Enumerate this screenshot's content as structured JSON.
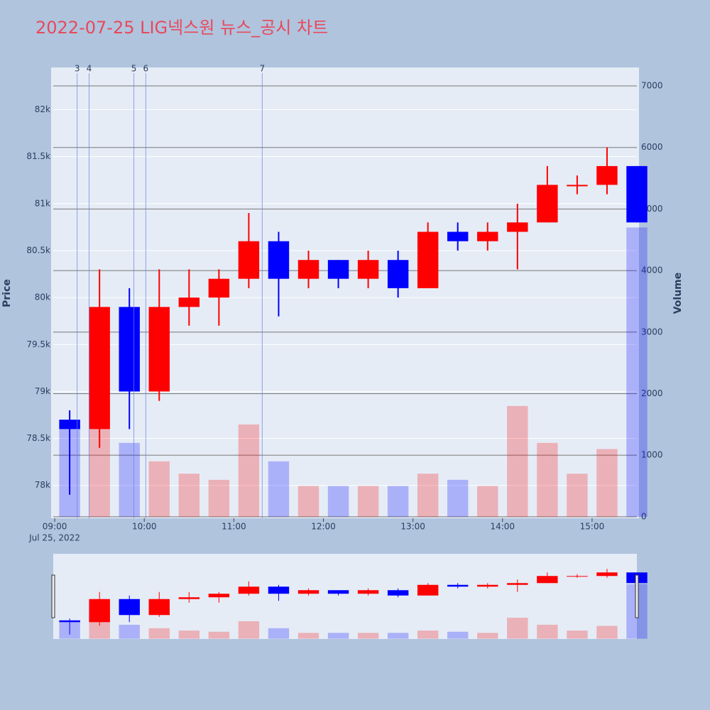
{
  "chart_data": {
    "type": "candlestick",
    "title": "2022-07-25 LIG넥스원 뉴스_공시 차트",
    "y_label": "Price",
    "y2_label": "Volume",
    "x_date_label": "Jul 25, 2022",
    "x": [
      "2022-07-25 09:00",
      "2022-07-25 09:20",
      "2022-07-25 09:40",
      "2022-07-25 10:00",
      "2022-07-25 10:20",
      "2022-07-25 10:40",
      "2022-07-25 11:00",
      "2022-07-25 11:20",
      "2022-07-25 11:40",
      "2022-07-25 12:00",
      "2022-07-25 12:20",
      "2022-07-25 12:40",
      "2022-07-25 13:00",
      "2022-07-25 13:20",
      "2022-07-25 13:40",
      "2022-07-25 14:00",
      "2022-07-25 14:20",
      "2022-07-25 14:40",
      "2022-07-25 15:00",
      "2022-07-25 15:20"
    ],
    "open": [
      78700,
      78600,
      79900,
      79000,
      79900,
      80000,
      80200,
      80600,
      80200,
      80400,
      80200,
      80400,
      80100,
      80700,
      80600,
      80700,
      80800,
      81200,
      81200,
      81400
    ],
    "high": [
      78800,
      80300,
      80100,
      80300,
      80300,
      80300,
      80900,
      80700,
      80500,
      80400,
      80500,
      80500,
      80800,
      80800,
      80800,
      81000,
      81400,
      81300,
      81600,
      81400
    ],
    "low": [
      77900,
      78400,
      78600,
      78900,
      79700,
      79700,
      80100,
      79800,
      80100,
      80100,
      80100,
      80000,
      80100,
      80500,
      80500,
      80300,
      80800,
      81100,
      81100,
      80800
    ],
    "close": [
      78600,
      79900,
      79000,
      79900,
      80000,
      80200,
      80600,
      80200,
      80400,
      80200,
      80400,
      80100,
      80700,
      80600,
      80700,
      80800,
      81200,
      81200,
      81400,
      80800
    ],
    "volume": [
      1500,
      2800,
      1200,
      900,
      700,
      600,
      1500,
      900,
      500,
      500,
      500,
      500,
      700,
      600,
      500,
      1800,
      1200,
      700,
      1100,
      4700
    ],
    "up_color": "#ff0000",
    "down_color": "#0000ff",
    "xlim": [
      "2022-07-25 08:59",
      "2022-07-25 15:30"
    ],
    "xticks": [
      {
        "value": "2022-07-25 09:00",
        "label": "09:00"
      },
      {
        "value": "2022-07-25 10:00",
        "label": "10:00"
      },
      {
        "value": "2022-07-25 11:00",
        "label": "11:00"
      },
      {
        "value": "2022-07-25 12:00",
        "label": "12:00"
      },
      {
        "value": "2022-07-25 13:00",
        "label": "13:00"
      },
      {
        "value": "2022-07-25 14:00",
        "label": "14:00"
      },
      {
        "value": "2022-07-25 15:00",
        "label": "15:00"
      }
    ],
    "ylim": [
      77650,
      82450
    ],
    "yticks": [
      {
        "value": 78000,
        "label": "78k"
      },
      {
        "value": 78500,
        "label": "78.5k"
      },
      {
        "value": 79000,
        "label": "79k"
      },
      {
        "value": 79500,
        "label": "79.5k"
      },
      {
        "value": 80000,
        "label": "80k"
      },
      {
        "value": 80500,
        "label": "80.5k"
      },
      {
        "value": 81000,
        "label": "81k"
      },
      {
        "value": 81500,
        "label": "81.5k"
      },
      {
        "value": 82000,
        "label": "82k"
      }
    ],
    "y2lim": [
      -25,
      7300
    ],
    "y2ticks": [
      0,
      1000,
      2000,
      3000,
      4000,
      5000,
      6000,
      7000
    ],
    "annotations": [
      {
        "label": "3",
        "x": "2022-07-25 09:15"
      },
      {
        "label": "4",
        "x": "2022-07-25 09:23"
      },
      {
        "label": "5",
        "x": "2022-07-25 09:53"
      },
      {
        "label": "6",
        "x": "2022-07-25 10:01"
      },
      {
        "label": "7",
        "x": "2022-07-25 11:19"
      }
    ]
  }
}
